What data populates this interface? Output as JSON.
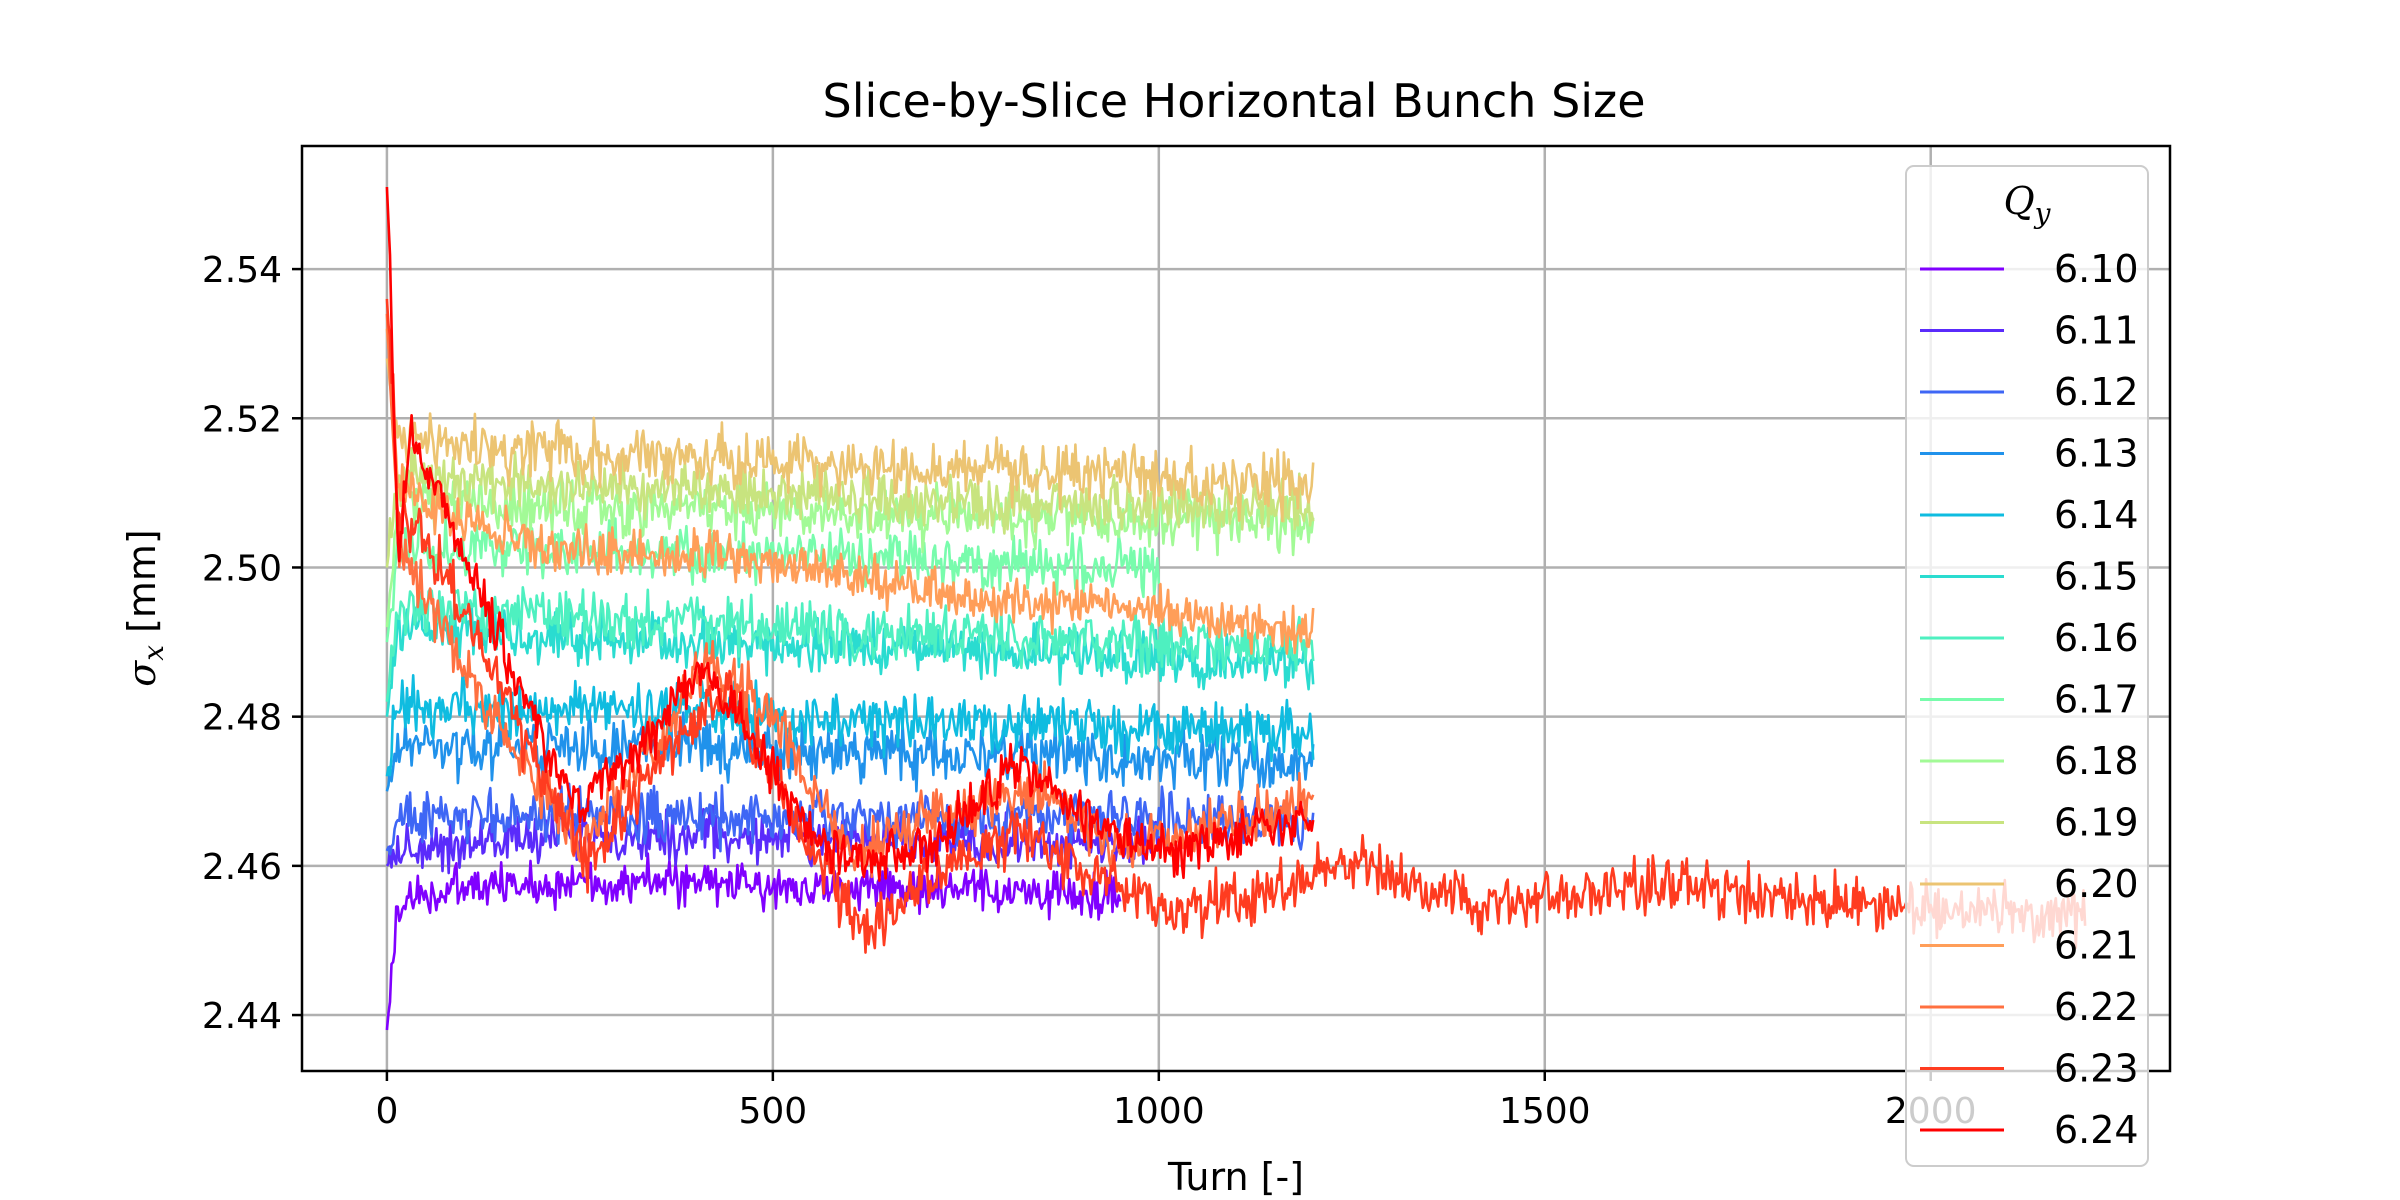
{
  "chart_data": {
    "type": "line",
    "title": "Slice-by-Slice Horizontal Bunch Size",
    "xlabel": "Turn [-]",
    "ylabel_main": "σ",
    "ylabel_sub": "x",
    "ylabel_rest": " [mm]",
    "xlim": [
      -110,
      2310
    ],
    "ylim": [
      2.4325,
      2.5565
    ],
    "xticks": [
      0,
      500,
      1000,
      1500,
      2000
    ],
    "xtick_labels": [
      "0",
      "500",
      "1000",
      "1500",
      "2000"
    ],
    "yticks": [
      2.44,
      2.46,
      2.48,
      2.5,
      2.52,
      2.54
    ],
    "ytick_labels": [
      "2.44",
      "2.46",
      "2.48",
      "2.50",
      "2.52",
      "2.54"
    ],
    "grid": true,
    "legend": {
      "title_main": "Q",
      "title_sub": "y",
      "placement": "right"
    },
    "series": [
      {
        "name": "6.10",
        "color": "#8000ff",
        "x_end": 950,
        "start": 2.438,
        "profile": [
          [
            0,
            2.455
          ],
          [
            100,
            2.457
          ],
          [
            300,
            2.458
          ],
          [
            600,
            2.457
          ],
          [
            950,
            2.456
          ]
        ],
        "noise": 0.0015
      },
      {
        "name": "6.11",
        "color": "#5a2bfb",
        "x_end": 1000,
        "start": 2.46,
        "profile": [
          [
            0,
            2.462
          ],
          [
            200,
            2.464
          ],
          [
            500,
            2.464
          ],
          [
            800,
            2.463
          ],
          [
            1000,
            2.463
          ]
        ],
        "noise": 0.0016
      },
      {
        "name": "6.12",
        "color": "#3e66f5",
        "x_end": 1200,
        "start": 2.462,
        "profile": [
          [
            0,
            2.466
          ],
          [
            200,
            2.467
          ],
          [
            600,
            2.466
          ],
          [
            900,
            2.467
          ],
          [
            1200,
            2.466
          ]
        ],
        "noise": 0.0017
      },
      {
        "name": "6.13",
        "color": "#2092eb",
        "x_end": 1200,
        "start": 2.47,
        "profile": [
          [
            0,
            2.476
          ],
          [
            300,
            2.476
          ],
          [
            700,
            2.475
          ],
          [
            1200,
            2.474
          ]
        ],
        "noise": 0.0018
      },
      {
        "name": "6.14",
        "color": "#0fbce0",
        "x_end": 1200,
        "start": 2.472,
        "profile": [
          [
            0,
            2.481
          ],
          [
            300,
            2.481
          ],
          [
            700,
            2.479
          ],
          [
            1200,
            2.478
          ]
        ],
        "noise": 0.0018
      },
      {
        "name": "6.15",
        "color": "#2adcd0",
        "x_end": 1200,
        "start": 2.48,
        "profile": [
          [
            0,
            2.492
          ],
          [
            300,
            2.49
          ],
          [
            700,
            2.489
          ],
          [
            1200,
            2.487
          ]
        ],
        "noise": 0.0018
      },
      {
        "name": "6.16",
        "color": "#4ef0c0",
        "x_end": 1200,
        "start": 2.482,
        "profile": [
          [
            0,
            2.494
          ],
          [
            300,
            2.493
          ],
          [
            700,
            2.491
          ],
          [
            1200,
            2.489
          ]
        ],
        "noise": 0.0018
      },
      {
        "name": "6.17",
        "color": "#78fcac",
        "x_end": 1000,
        "start": 2.49,
        "profile": [
          [
            0,
            2.503
          ],
          [
            300,
            2.502
          ],
          [
            700,
            2.501
          ],
          [
            1000,
            2.5
          ]
        ],
        "noise": 0.0018
      },
      {
        "name": "6.18",
        "color": "#a2fa96",
        "x_end": 1200,
        "start": 2.492,
        "profile": [
          [
            0,
            2.509
          ],
          [
            300,
            2.508
          ],
          [
            700,
            2.507
          ],
          [
            1200,
            2.506
          ]
        ],
        "noise": 0.0018
      },
      {
        "name": "6.19",
        "color": "#c8e47f",
        "x_end": 1200,
        "start": 2.5,
        "profile": [
          [
            0,
            2.512
          ],
          [
            300,
            2.511
          ],
          [
            700,
            2.509
          ],
          [
            1200,
            2.508
          ]
        ],
        "noise": 0.0018
      },
      {
        "name": "6.20",
        "color": "#ecc472",
        "x_end": 1200,
        "start": 2.528,
        "profile": [
          [
            0,
            2.517
          ],
          [
            300,
            2.515
          ],
          [
            700,
            2.513
          ],
          [
            1200,
            2.511
          ]
        ],
        "noise": 0.0019
      },
      {
        "name": "6.21",
        "color": "#ff9e59",
        "x_end": 1200,
        "start": 2.532,
        "profile": [
          [
            0,
            2.512
          ],
          [
            150,
            2.504
          ],
          [
            300,
            2.502
          ],
          [
            450,
            2.502
          ],
          [
            700,
            2.497
          ],
          [
            1000,
            2.494
          ],
          [
            1200,
            2.491
          ]
        ],
        "noise": 0.0016
      },
      {
        "name": "6.22",
        "color": "#ff7040",
        "x_end": 1200,
        "start": 2.534,
        "profile": [
          [
            0,
            2.505
          ],
          [
            100,
            2.487
          ],
          [
            200,
            2.47
          ],
          [
            250,
            2.462
          ],
          [
            300,
            2.47
          ],
          [
            420,
            2.487
          ],
          [
            500,
            2.48
          ],
          [
            600,
            2.462
          ],
          [
            700,
            2.466
          ],
          [
            850,
            2.47
          ],
          [
            950,
            2.462
          ],
          [
            1100,
            2.466
          ],
          [
            1200,
            2.468
          ]
        ],
        "noise": 0.0018
      },
      {
        "name": "6.23",
        "color": "#ff3c20",
        "x_end": 2200,
        "start": 2.536,
        "profile": [
          [
            0,
            2.51
          ],
          [
            100,
            2.495
          ],
          [
            200,
            2.472
          ],
          [
            260,
            2.46
          ],
          [
            350,
            2.474
          ],
          [
            440,
            2.484
          ],
          [
            520,
            2.468
          ],
          [
            620,
            2.451
          ],
          [
            700,
            2.458
          ],
          [
            820,
            2.465
          ],
          [
            900,
            2.46
          ],
          [
            1000,
            2.454
          ],
          [
            1100,
            2.455
          ],
          [
            1250,
            2.461
          ],
          [
            1400,
            2.455
          ],
          [
            1600,
            2.457
          ],
          [
            1650,
            2.458
          ],
          [
            1800,
            2.456
          ],
          [
            2000,
            2.454
          ],
          [
            2200,
            2.454
          ]
        ],
        "noise": 0.0018
      },
      {
        "name": "6.24",
        "color": "#ff0000",
        "x_end": 1200,
        "start": 2.551,
        "profile": [
          [
            0,
            2.52
          ],
          [
            10,
            2.497
          ],
          [
            30,
            2.517
          ],
          [
            60,
            2.512
          ],
          [
            120,
            2.497
          ],
          [
            200,
            2.477
          ],
          [
            250,
            2.468
          ],
          [
            330,
            2.476
          ],
          [
            410,
            2.486
          ],
          [
            470,
            2.478
          ],
          [
            560,
            2.462
          ],
          [
            620,
            2.461
          ],
          [
            700,
            2.462
          ],
          [
            820,
            2.474
          ],
          [
            900,
            2.467
          ],
          [
            1000,
            2.462
          ],
          [
            1100,
            2.464
          ],
          [
            1200,
            2.466
          ]
        ],
        "noise": 0.0016
      }
    ]
  }
}
